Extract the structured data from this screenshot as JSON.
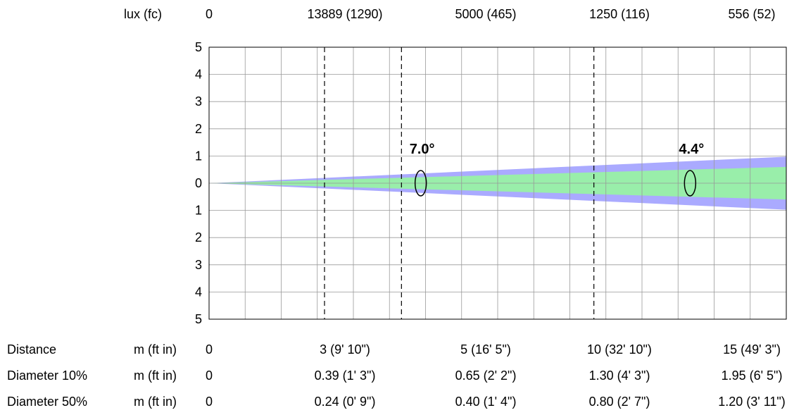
{
  "chart_data": {
    "type": "area",
    "title": "",
    "xlabel": "",
    "ylabel": "",
    "xlim": [
      0,
      15
    ],
    "ylim": [
      -5,
      5
    ],
    "y_ticks": [
      "5",
      "4",
      "3",
      "2",
      "1",
      "0",
      "1",
      "2",
      "3",
      "4",
      "5"
    ],
    "grid": true,
    "reference_distances": [
      3,
      5,
      10
    ],
    "lux_row": {
      "label": "lux (fc)",
      "values": [
        "0",
        "13889 (1290)",
        "5000 (465)",
        "1250 (116)",
        "556 (52)"
      ]
    },
    "rows": [
      {
        "label": "Distance",
        "unit": "m (ft in)",
        "values": [
          "0",
          "3 (9' 10\")",
          "5 (16' 5\")",
          "10 (32' 10\")",
          "15 (49' 3\")"
        ]
      },
      {
        "label": "Diameter 10%",
        "unit": "m (ft in)",
        "values": [
          "0",
          "0.39 (1' 3\")",
          "0.65 (2' 2\")",
          "1.30 (4' 3\")",
          "1.95 (6' 5\")"
        ]
      },
      {
        "label": "Diameter 50%",
        "unit": "m (ft in)",
        "values": [
          "0",
          "0.24 (0' 9\")",
          "0.40 (1' 4\")",
          "0.80 (2' 7\")",
          "1.20 (3' 11\")"
        ]
      }
    ],
    "series": [
      {
        "name": "",
        "angle_label": "7.0°",
        "color": "#aaaaff",
        "x": [
          0,
          15
        ],
        "diameter": [
          0,
          1.95
        ],
        "annotation_x": 5.5
      },
      {
        "name": "",
        "angle_label": "4.4°",
        "color": "#99eeaa",
        "x": [
          0,
          15
        ],
        "diameter": [
          0,
          1.2
        ],
        "annotation_x": 12.5
      }
    ]
  }
}
